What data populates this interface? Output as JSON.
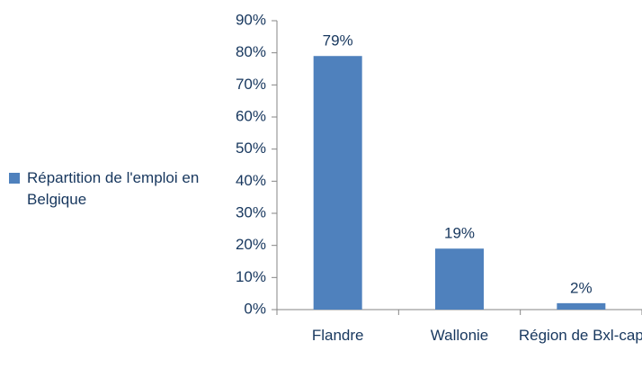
{
  "chart_data": {
    "type": "bar",
    "categories": [
      "Flandre",
      "Wallonie",
      "Région de Bxl-cap"
    ],
    "series": [
      {
        "name": "Répartition de l'emploi en Belgique",
        "color": "#4f81bd",
        "values": [
          79,
          19,
          2
        ],
        "value_labels": [
          "79%",
          "19%",
          "2%"
        ]
      }
    ],
    "ylim": [
      0,
      90
    ],
    "yticks": [
      {
        "value": 0,
        "label": "0%"
      },
      {
        "value": 10,
        "label": "10%"
      },
      {
        "value": 20,
        "label": "20%"
      },
      {
        "value": 30,
        "label": "30%"
      },
      {
        "value": 40,
        "label": "40%"
      },
      {
        "value": 50,
        "label": "50%"
      },
      {
        "value": 60,
        "label": "60%"
      },
      {
        "value": 70,
        "label": "70%"
      },
      {
        "value": 80,
        "label": "80%"
      },
      {
        "value": 90,
        "label": "90%"
      }
    ],
    "legend": "left"
  }
}
